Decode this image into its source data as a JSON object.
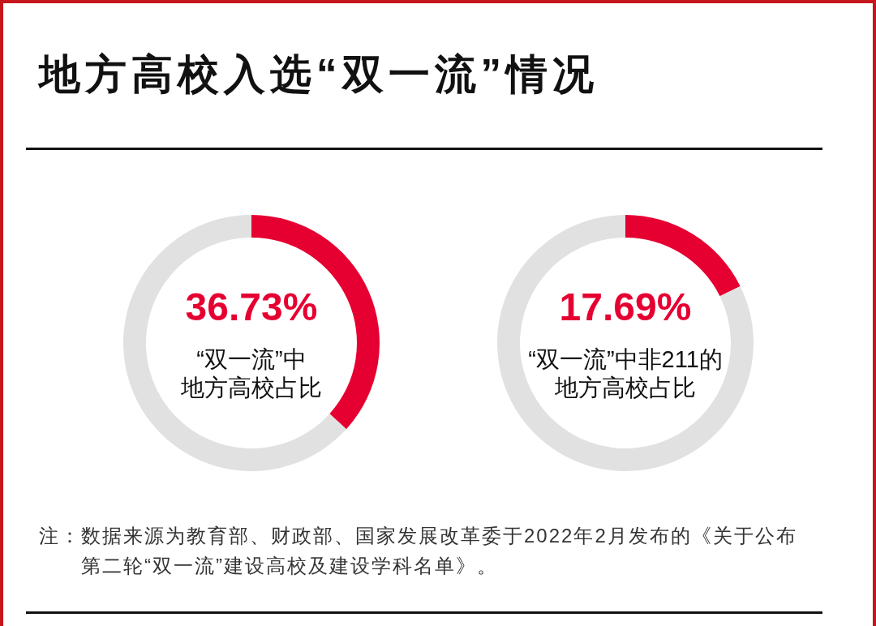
{
  "chart_data": [
    {
      "type": "other",
      "title": "地方高校入选“双一流”情况"
    },
    {
      "type": "donut",
      "categories": [
        "“双一流”中地方高校占比",
        null
      ],
      "values": [
        36.73,
        63.27
      ],
      "colors": [
        "#e60032",
        "#e1e1e1"
      ],
      "value_labels": [
        "36.73%",
        null
      ]
    },
    {
      "type": "donut",
      "categories": [
        "“双一流”中非211的地方高校占比",
        null
      ],
      "values": [
        17.69,
        82.31
      ],
      "colors": [
        "#e60032",
        "#e1e1e1"
      ],
      "value_labels": [
        "17.69%",
        null
      ]
    },
    {
      "type": "other",
      "annotations": [
        "注：数据来源为教育部、财政部、国家发展改革委于2022年2月发布的《关于公布第二轮“双一流”建设高校及建设学科名单》。"
      ]
    }
  ]
}
